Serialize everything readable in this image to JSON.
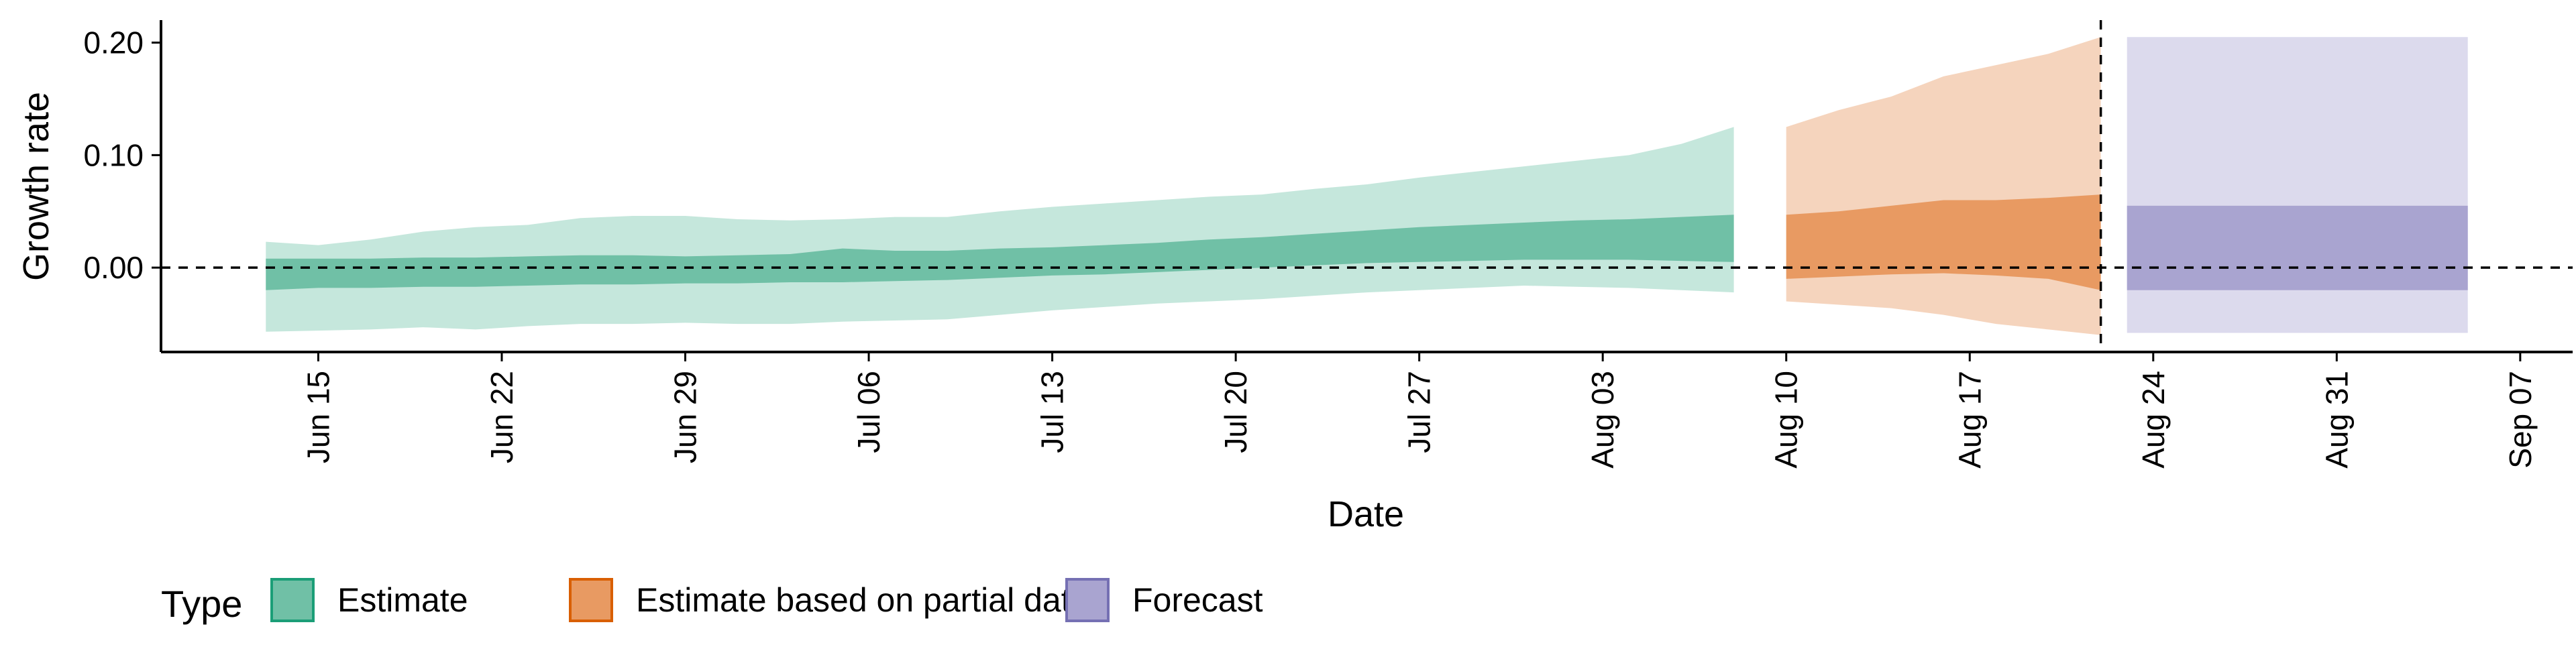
{
  "chart_data": {
    "type": "area",
    "xlabel": "Date",
    "ylabel": "Growth rate",
    "x_range": [
      "2020-06-09",
      "2020-09-09"
    ],
    "ylim": [
      -0.075,
      0.22
    ],
    "y_ticks": [
      0.0,
      0.1,
      0.2
    ],
    "y_tick_labels": [
      "0.00",
      "0.10",
      "0.20"
    ],
    "x_ticks": [
      "2020-06-15",
      "2020-06-22",
      "2020-06-29",
      "2020-07-06",
      "2020-07-13",
      "2020-07-20",
      "2020-07-27",
      "2020-08-03",
      "2020-08-10",
      "2020-08-17",
      "2020-08-24",
      "2020-08-31",
      "2020-09-07"
    ],
    "x_tick_labels": [
      "Jun 15",
      "Jun 22",
      "Jun 29",
      "Jul 06",
      "Jul 13",
      "Jul 20",
      "Jul 27",
      "Aug 03",
      "Aug 10",
      "Aug 17",
      "Aug 24",
      "Aug 31",
      "Sep 07"
    ],
    "grid": false,
    "reference_lines": {
      "horizontal_y": 0.0,
      "vertical_date": "2020-08-22",
      "style": "dashed"
    },
    "legend": {
      "title": "Type",
      "position": "bottom-left",
      "entries": [
        {
          "label": "Estimate",
          "fill": "#70c0a6",
          "stroke": "#1b9e77"
        },
        {
          "label": "Estimate based on partial data",
          "fill": "#e89a62",
          "stroke": "#d95f02"
        },
        {
          "label": "Forecast",
          "fill": "#a9a4d0",
          "stroke": "#7570b3"
        }
      ]
    },
    "series": [
      {
        "name": "Estimate",
        "outer_color": "#c5e7dc",
        "inner_color": "#70c0a6",
        "points": [
          {
            "date": "2020-06-13",
            "lo90": -0.057,
            "lo50": -0.02,
            "hi50": 0.008,
            "hi90": 0.023
          },
          {
            "date": "2020-06-15",
            "lo90": -0.056,
            "lo50": -0.018,
            "hi50": 0.008,
            "hi90": 0.02
          },
          {
            "date": "2020-06-17",
            "lo90": -0.055,
            "lo50": -0.018,
            "hi50": 0.008,
            "hi90": 0.025
          },
          {
            "date": "2020-06-19",
            "lo90": -0.053,
            "lo50": -0.017,
            "hi50": 0.009,
            "hi90": 0.032
          },
          {
            "date": "2020-06-21",
            "lo90": -0.055,
            "lo50": -0.017,
            "hi50": 0.009,
            "hi90": 0.036
          },
          {
            "date": "2020-06-23",
            "lo90": -0.052,
            "lo50": -0.016,
            "hi50": 0.01,
            "hi90": 0.038
          },
          {
            "date": "2020-06-25",
            "lo90": -0.05,
            "lo50": -0.015,
            "hi50": 0.011,
            "hi90": 0.044
          },
          {
            "date": "2020-06-27",
            "lo90": -0.05,
            "lo50": -0.015,
            "hi50": 0.011,
            "hi90": 0.046
          },
          {
            "date": "2020-06-29",
            "lo90": -0.049,
            "lo50": -0.014,
            "hi50": 0.01,
            "hi90": 0.046
          },
          {
            "date": "2020-07-01",
            "lo90": -0.05,
            "lo50": -0.014,
            "hi50": 0.011,
            "hi90": 0.043
          },
          {
            "date": "2020-07-03",
            "lo90": -0.05,
            "lo50": -0.013,
            "hi50": 0.012,
            "hi90": 0.042
          },
          {
            "date": "2020-07-05",
            "lo90": -0.048,
            "lo50": -0.013,
            "hi50": 0.017,
            "hi90": 0.043
          },
          {
            "date": "2020-07-07",
            "lo90": -0.047,
            "lo50": -0.012,
            "hi50": 0.015,
            "hi90": 0.045
          },
          {
            "date": "2020-07-09",
            "lo90": -0.046,
            "lo50": -0.011,
            "hi50": 0.015,
            "hi90": 0.045
          },
          {
            "date": "2020-07-11",
            "lo90": -0.042,
            "lo50": -0.009,
            "hi50": 0.017,
            "hi90": 0.05
          },
          {
            "date": "2020-07-13",
            "lo90": -0.038,
            "lo50": -0.007,
            "hi50": 0.018,
            "hi90": 0.054
          },
          {
            "date": "2020-07-15",
            "lo90": -0.035,
            "lo50": -0.006,
            "hi50": 0.02,
            "hi90": 0.057
          },
          {
            "date": "2020-07-17",
            "lo90": -0.032,
            "lo50": -0.004,
            "hi50": 0.022,
            "hi90": 0.06
          },
          {
            "date": "2020-07-19",
            "lo90": -0.03,
            "lo50": -0.002,
            "hi50": 0.025,
            "hi90": 0.063
          },
          {
            "date": "2020-07-21",
            "lo90": -0.028,
            "lo50": 0.0,
            "hi50": 0.027,
            "hi90": 0.065
          },
          {
            "date": "2020-07-23",
            "lo90": -0.025,
            "lo50": 0.002,
            "hi50": 0.03,
            "hi90": 0.07
          },
          {
            "date": "2020-07-25",
            "lo90": -0.022,
            "lo50": 0.004,
            "hi50": 0.033,
            "hi90": 0.074
          },
          {
            "date": "2020-07-27",
            "lo90": -0.02,
            "lo50": 0.005,
            "hi50": 0.036,
            "hi90": 0.08
          },
          {
            "date": "2020-07-29",
            "lo90": -0.018,
            "lo50": 0.006,
            "hi50": 0.038,
            "hi90": 0.085
          },
          {
            "date": "2020-07-31",
            "lo90": -0.016,
            "lo50": 0.007,
            "hi50": 0.04,
            "hi90": 0.09
          },
          {
            "date": "2020-08-02",
            "lo90": -0.017,
            "lo50": 0.007,
            "hi50": 0.042,
            "hi90": 0.095
          },
          {
            "date": "2020-08-04",
            "lo90": -0.018,
            "lo50": 0.007,
            "hi50": 0.043,
            "hi90": 0.1
          },
          {
            "date": "2020-08-06",
            "lo90": -0.02,
            "lo50": 0.006,
            "hi50": 0.045,
            "hi90": 0.11
          },
          {
            "date": "2020-08-08",
            "lo90": -0.022,
            "lo50": 0.005,
            "hi50": 0.047,
            "hi90": 0.125
          }
        ]
      },
      {
        "name": "Estimate based on partial data",
        "outer_color": "#f5d4bd",
        "inner_color": "#e89a62",
        "points": [
          {
            "date": "2020-08-10",
            "lo90": -0.03,
            "lo50": -0.01,
            "hi50": 0.047,
            "hi90": 0.125
          },
          {
            "date": "2020-08-12",
            "lo90": -0.033,
            "lo50": -0.008,
            "hi50": 0.05,
            "hi90": 0.14
          },
          {
            "date": "2020-08-14",
            "lo90": -0.036,
            "lo50": -0.006,
            "hi50": 0.055,
            "hi90": 0.152
          },
          {
            "date": "2020-08-16",
            "lo90": -0.042,
            "lo50": -0.005,
            "hi50": 0.06,
            "hi90": 0.17
          },
          {
            "date": "2020-08-18",
            "lo90": -0.05,
            "lo50": -0.007,
            "hi50": 0.06,
            "hi90": 0.18
          },
          {
            "date": "2020-08-20",
            "lo90": -0.055,
            "lo50": -0.01,
            "hi50": 0.062,
            "hi90": 0.19
          },
          {
            "date": "2020-08-22",
            "lo90": -0.06,
            "lo50": -0.02,
            "hi50": 0.065,
            "hi90": 0.205
          }
        ]
      },
      {
        "name": "Forecast",
        "outer_color": "#dcdaed",
        "inner_color": "#a9a4d0",
        "points": [
          {
            "date": "2020-08-23",
            "lo90": -0.058,
            "lo50": -0.02,
            "hi50": 0.055,
            "hi90": 0.205
          },
          {
            "date": "2020-09-05",
            "lo90": -0.058,
            "lo50": -0.02,
            "hi50": 0.055,
            "hi90": 0.205
          }
        ]
      }
    ]
  }
}
